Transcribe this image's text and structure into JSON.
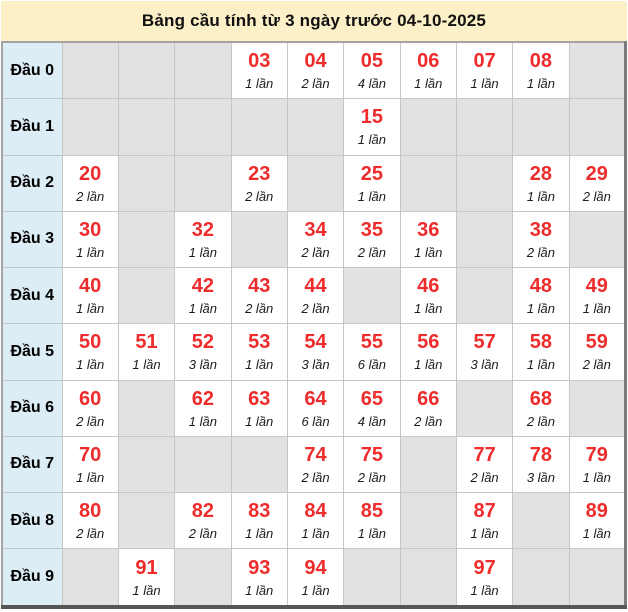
{
  "title": "Bảng cầu tính từ 3 ngày trước 04-10-2025",
  "colors": {
    "title_bg": "#FBF0C7",
    "header_bg": "#DCEDF6",
    "empty_cell_bg": "#E2E2E2",
    "filled_cell_bg": "#FFFFFF",
    "number_color": "#EE2C2C",
    "grid_border": "#C6C6C6",
    "outer_border": "#A3A3A3",
    "bottom_border": "#565656"
  },
  "chart_data": {
    "type": "table",
    "title": "Bảng cầu tính từ 3 ngày trước 04-10-2025",
    "row_headers": [
      "Đầu 0",
      "Đầu 1",
      "Đầu 2",
      "Đầu 3",
      "Đầu 4",
      "Đầu 5",
      "Đầu 6",
      "Đầu 7",
      "Đầu 8",
      "Đầu 9"
    ],
    "columns_per_row": 10,
    "rows": [
      {
        "label": "Đầu 0",
        "cells": [
          null,
          null,
          null,
          {
            "number": "03",
            "times": "1 lần"
          },
          {
            "number": "04",
            "times": "2 lần"
          },
          {
            "number": "05",
            "times": "4 lần"
          },
          {
            "number": "06",
            "times": "1 lần"
          },
          {
            "number": "07",
            "times": "1 lần"
          },
          {
            "number": "08",
            "times": "1 lần"
          },
          null
        ]
      },
      {
        "label": "Đầu 1",
        "cells": [
          null,
          null,
          null,
          null,
          null,
          {
            "number": "15",
            "times": "1 lần"
          },
          null,
          null,
          null,
          null
        ]
      },
      {
        "label": "Đầu 2",
        "cells": [
          {
            "number": "20",
            "times": "2 lần"
          },
          null,
          null,
          {
            "number": "23",
            "times": "2 lần"
          },
          null,
          {
            "number": "25",
            "times": "1 lần"
          },
          null,
          null,
          {
            "number": "28",
            "times": "1 lần"
          },
          {
            "number": "29",
            "times": "2 lần"
          }
        ]
      },
      {
        "label": "Đầu 3",
        "cells": [
          {
            "number": "30",
            "times": "1 lần"
          },
          null,
          {
            "number": "32",
            "times": "1 lần"
          },
          null,
          {
            "number": "34",
            "times": "2 lần"
          },
          {
            "number": "35",
            "times": "2 lần"
          },
          {
            "number": "36",
            "times": "1 lần"
          },
          null,
          {
            "number": "38",
            "times": "2 lần"
          },
          null
        ]
      },
      {
        "label": "Đầu 4",
        "cells": [
          {
            "number": "40",
            "times": "1 lần"
          },
          null,
          {
            "number": "42",
            "times": "1 lần"
          },
          {
            "number": "43",
            "times": "2 lần"
          },
          {
            "number": "44",
            "times": "2 lần"
          },
          null,
          {
            "number": "46",
            "times": "1 lần"
          },
          null,
          {
            "number": "48",
            "times": "1 lần"
          },
          {
            "number": "49",
            "times": "1 lần"
          }
        ]
      },
      {
        "label": "Đầu 5",
        "cells": [
          {
            "number": "50",
            "times": "1 lần"
          },
          {
            "number": "51",
            "times": "1 lần"
          },
          {
            "number": "52",
            "times": "3 lần"
          },
          {
            "number": "53",
            "times": "1 lần"
          },
          {
            "number": "54",
            "times": "3 lần"
          },
          {
            "number": "55",
            "times": "6 lần"
          },
          {
            "number": "56",
            "times": "1 lần"
          },
          {
            "number": "57",
            "times": "3 lần"
          },
          {
            "number": "58",
            "times": "1 lần"
          },
          {
            "number": "59",
            "times": "2 lần"
          }
        ]
      },
      {
        "label": "Đầu 6",
        "cells": [
          {
            "number": "60",
            "times": "2 lần"
          },
          null,
          {
            "number": "62",
            "times": "1 lần"
          },
          {
            "number": "63",
            "times": "1 lần"
          },
          {
            "number": "64",
            "times": "6 lần"
          },
          {
            "number": "65",
            "times": "4 lần"
          },
          {
            "number": "66",
            "times": "2 lần"
          },
          null,
          {
            "number": "68",
            "times": "2 lần"
          },
          null
        ]
      },
      {
        "label": "Đầu 7",
        "cells": [
          {
            "number": "70",
            "times": "1 lần"
          },
          null,
          null,
          null,
          {
            "number": "74",
            "times": "2 lần"
          },
          {
            "number": "75",
            "times": "2 lần"
          },
          null,
          {
            "number": "77",
            "times": "2 lần"
          },
          {
            "number": "78",
            "times": "3 lần"
          },
          {
            "number": "79",
            "times": "1 lần"
          }
        ]
      },
      {
        "label": "Đầu 8",
        "cells": [
          {
            "number": "80",
            "times": "2 lần"
          },
          null,
          {
            "number": "82",
            "times": "2 lần"
          },
          {
            "number": "83",
            "times": "1 lần"
          },
          {
            "number": "84",
            "times": "1 lần"
          },
          {
            "number": "85",
            "times": "1 lần"
          },
          null,
          {
            "number": "87",
            "times": "1 lần"
          },
          null,
          {
            "number": "89",
            "times": "1 lần"
          }
        ]
      },
      {
        "label": "Đầu 9",
        "cells": [
          null,
          {
            "number": "91",
            "times": "1 lần"
          },
          null,
          {
            "number": "93",
            "times": "1 lần"
          },
          {
            "number": "94",
            "times": "1 lần"
          },
          null,
          null,
          {
            "number": "97",
            "times": "1 lần"
          },
          null,
          null
        ]
      }
    ]
  }
}
